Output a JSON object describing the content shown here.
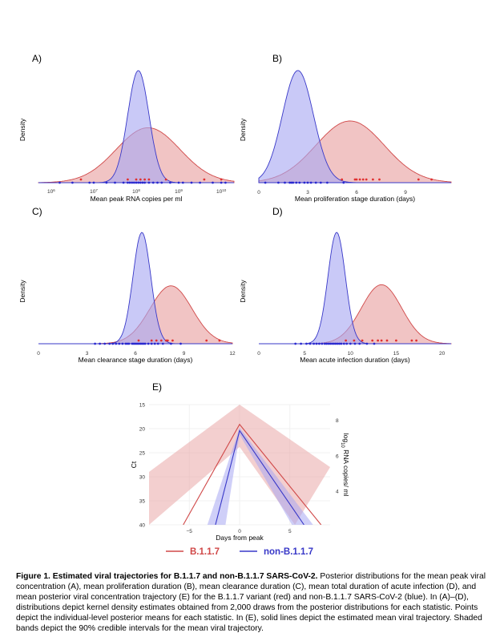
{
  "colors": {
    "red_fill": "#e8a0a0",
    "red_line": "#d04848",
    "blue_fill": "#a8a8f2",
    "blue_line": "#3838c8",
    "red_point": "#e03030",
    "blue_point": "#2a2ad0"
  },
  "chart_data": [
    {
      "id": "A",
      "panel_label": "A)",
      "type": "area",
      "xlabel": "Mean peak RNA copies per ml",
      "ylabel": "Density",
      "xscale": "log10",
      "xlim": [
        5.7,
        10.3
      ],
      "xticks": [
        {
          "v": 6,
          "exp": "6"
        },
        {
          "v": 7,
          "exp": "7"
        },
        {
          "v": 8,
          "exp": "8"
        },
        {
          "v": 9,
          "exp": "9"
        },
        {
          "v": 10,
          "exp": "10"
        }
      ],
      "series": [
        {
          "name": "B.1.1.7",
          "color": "red",
          "mean": 8.28,
          "sd": 0.75,
          "peak_density": 0.49,
          "points": [
            6.7,
            7.8,
            8.0,
            8.1,
            8.2,
            8.3,
            8.7,
            9.6,
            10.0
          ]
        },
        {
          "name": "non-B.1.1.7",
          "color": "blue",
          "mean": 8.05,
          "sd": 0.25,
          "peak_density": 1.0,
          "points": [
            6.2,
            6.5,
            6.9,
            7.0,
            7.3,
            7.5,
            7.7,
            7.8,
            7.85,
            7.9,
            7.95,
            8.0,
            8.05,
            8.1,
            8.15,
            8.2,
            8.3,
            8.4,
            8.5,
            8.6,
            8.8,
            9.0,
            9.1,
            9.3,
            9.5,
            9.8,
            10.0,
            10.1
          ]
        }
      ]
    },
    {
      "id": "B",
      "panel_label": "B)",
      "type": "area",
      "xlabel": "Mean proliferation stage duration (days)",
      "ylabel": "Density",
      "xscale": "linear",
      "xlim": [
        0,
        11.8
      ],
      "xticks": [
        {
          "v": 0,
          "label": "0"
        },
        {
          "v": 3,
          "label": "3"
        },
        {
          "v": 6,
          "label": "6"
        },
        {
          "v": 9,
          "label": "9"
        }
      ],
      "series": [
        {
          "name": "B.1.1.7",
          "color": "red",
          "mean": 5.6,
          "sd": 2.1,
          "peak_density": 0.55,
          "points": [
            5.1,
            5.9,
            6.0,
            6.2,
            6.4,
            6.6,
            7.0,
            7.4,
            9.8,
            10.6
          ]
        },
        {
          "name": "non-B.1.1.7",
          "color": "blue",
          "mean": 2.4,
          "sd": 0.95,
          "peak_density": 1.0,
          "points": [
            0.4,
            1.2,
            1.6,
            1.9,
            2.0,
            2.1,
            2.3,
            2.5,
            2.8,
            3.0,
            3.2,
            3.5,
            3.8,
            4.2,
            5.2
          ]
        }
      ]
    },
    {
      "id": "C",
      "panel_label": "C)",
      "type": "area",
      "xlabel": "Mean clearance stage duration (days)",
      "ylabel": "Density",
      "xscale": "linear",
      "xlim": [
        0,
        12
      ],
      "xticks": [
        {
          "v": 0,
          "label": "0"
        },
        {
          "v": 3,
          "label": "3"
        },
        {
          "v": 6,
          "label": "6"
        },
        {
          "v": 9,
          "label": "9"
        },
        {
          "v": 12,
          "label": "12"
        }
      ],
      "series": [
        {
          "name": "B.1.1.7",
          "color": "red",
          "mean": 8.2,
          "sd": 1.3,
          "peak_density": 0.52,
          "points": [
            6.2,
            7.0,
            7.3,
            7.6,
            7.9,
            8.0,
            8.3,
            10.4,
            11.2
          ]
        },
        {
          "name": "non-B.1.1.7",
          "color": "blue",
          "mean": 6.4,
          "sd": 0.55,
          "peak_density": 1.0,
          "points": [
            3.5,
            3.8,
            4.1,
            4.4,
            4.6,
            4.8,
            5.0,
            5.2,
            5.4,
            5.5,
            5.6,
            5.8,
            5.9,
            6.0,
            6.1,
            6.2,
            6.3,
            6.4,
            6.5,
            6.6,
            6.8,
            7.0,
            7.2,
            7.4,
            7.7,
            8.2,
            8.8
          ]
        }
      ]
    },
    {
      "id": "D",
      "panel_label": "D)",
      "type": "area",
      "xlabel": "Mean acute infection duration (days)",
      "ylabel": "Density",
      "xscale": "linear",
      "xlim": [
        0,
        21
      ],
      "xticks": [
        {
          "v": 0,
          "label": "0"
        },
        {
          "v": 5,
          "label": "5"
        },
        {
          "v": 10,
          "label": "10"
        },
        {
          "v": 15,
          "label": "15"
        },
        {
          "v": 20,
          "label": "20"
        }
      ],
      "series": [
        {
          "name": "B.1.1.7",
          "color": "red",
          "mean": 13.4,
          "sd": 2.2,
          "peak_density": 0.53,
          "points": [
            9.5,
            10.4,
            11.3,
            12.4,
            13.0,
            13.4,
            14.0,
            15.0,
            16.7,
            17.2
          ]
        },
        {
          "name": "non-B.1.1.7",
          "color": "blue",
          "mean": 8.5,
          "sd": 0.95,
          "peak_density": 1.0,
          "points": [
            4.0,
            4.6,
            5.2,
            5.6,
            6.0,
            6.3,
            6.6,
            6.9,
            7.2,
            7.4,
            7.6,
            7.8,
            8.0,
            8.2,
            8.4,
            8.6,
            8.8,
            9.0,
            9.3,
            9.6,
            10.0,
            10.5,
            11.0,
            11.8,
            12.6
          ]
        }
      ]
    },
    {
      "id": "E",
      "panel_label": "E)",
      "type": "line",
      "xlabel": "Days from peak",
      "ylabel": "Ct",
      "y2label_html": "log<tspan baseline-shift='sub' font-size='6'>10</tspan> RNA copies/ ml",
      "xlim": [
        -9,
        9
      ],
      "ylim": [
        15,
        40
      ],
      "y_reversed": true,
      "xticks": [
        -5,
        0,
        5
      ],
      "yticks": [
        15,
        20,
        25,
        30,
        35,
        40
      ],
      "y2ticks": [
        {
          "ct": 18.3,
          "label": "8"
        },
        {
          "ct": 25.7,
          "label": "6"
        },
        {
          "ct": 33.0,
          "label": "4"
        }
      ],
      "series": [
        {
          "name": "B.1.1.7",
          "color": "red",
          "mean": {
            "peak_ct": 19.1,
            "x_left": -5.6,
            "x_right": 8.1
          },
          "band_peak": [
            15.0,
            23.8
          ],
          "band_lower_edge": [
            [
              -9,
              29
            ],
            [
              0,
              15.0
            ],
            [
              9,
              28
            ]
          ],
          "band_upper_edge": [
            [
              -9,
              40
            ],
            [
              0,
              23.8
            ],
            [
              5.5,
              40
            ]
          ]
        },
        {
          "name": "non-B.1.1.7",
          "color": "blue",
          "mean": {
            "peak_ct": 20.4,
            "x_left": -2.4,
            "x_right": 6.4
          },
          "band_peak": [
            19.8,
            21.2
          ],
          "band_lower_edge": [
            [
              -3.2,
              40
            ],
            [
              0,
              19.8
            ],
            [
              7.3,
              40
            ]
          ],
          "band_upper_edge": [
            [
              -1.4,
              40
            ],
            [
              0,
              21.2
            ],
            [
              5.2,
              40
            ]
          ]
        }
      ],
      "legend": [
        {
          "label": "B.1.1.7",
          "color": "red"
        },
        {
          "label": "non-B.1.1.7",
          "color": "blue"
        }
      ]
    }
  ],
  "caption": {
    "title": "Figure 1. Estimated viral trajectories for B.1.1.7 and non-B.1.1.7 SARS-CoV-2.",
    "body": " Posterior distributions for the mean peak viral concentration (A), mean proliferation duration (B), mean clearance duration (C), mean total duration of acute infection (D), and mean posterior viral concentration trajectory (E) for the B.1.1.7 variant (red) and non-B.1.1.7 SARS-CoV-2 (blue). In (A)–(D), distributions depict kernel density estimates obtained from 2,000 draws from the posterior distributions for each statistic. Points depict the individual-level posterior means for each statistic. In (E), solid lines depict the estimated mean viral trajectory. Shaded bands depict the 90% credible intervals for the mean viral trajectory."
  }
}
